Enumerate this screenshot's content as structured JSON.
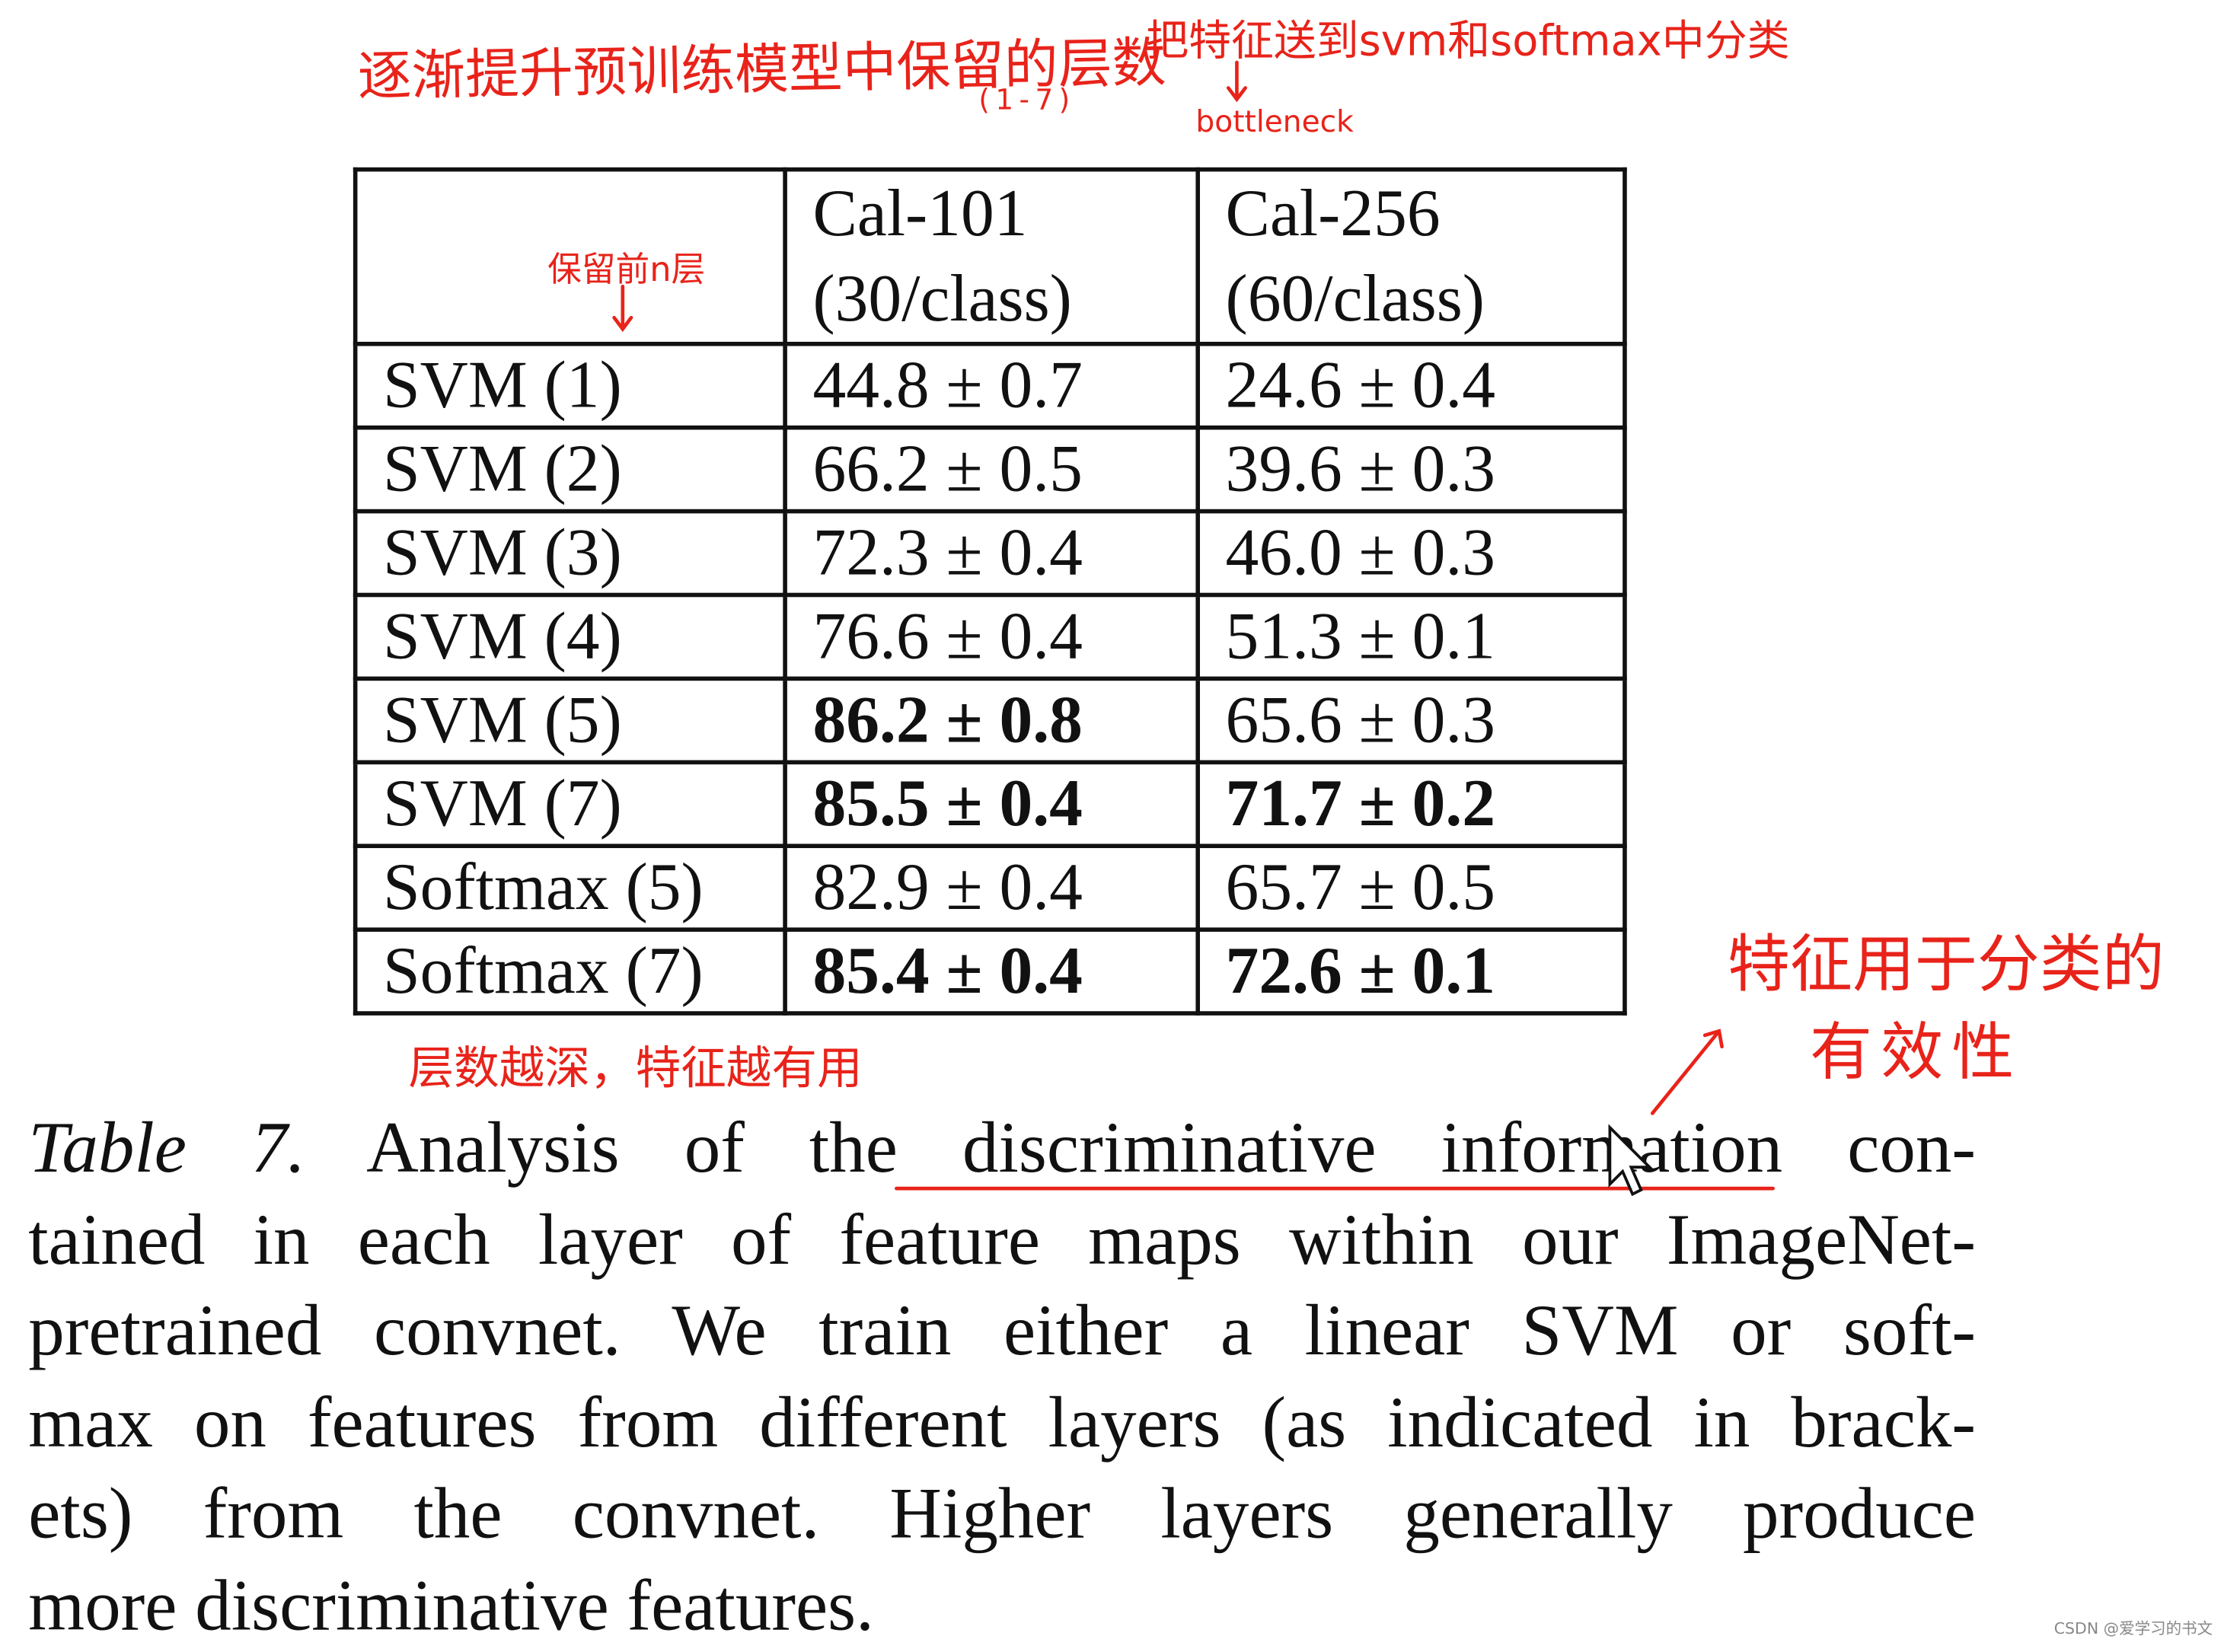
{
  "annotations": {
    "top_left": "逐渐提升预训练模型中保留的层数",
    "top_left_range": "(1-7)",
    "top_right": "把特征送到svm和softmax中分类",
    "bottleneck": "bottleneck",
    "keep_first_n": "保留前n层",
    "below_table": "层数越深，特征越有用",
    "right_line1": "特征用于分类的",
    "right_line2": "有效性",
    "color": "#e8231a"
  },
  "table": {
    "headers": [
      {
        "line1": "",
        "line2": ""
      },
      {
        "line1": "Cal-101",
        "line2": "(30/class)"
      },
      {
        "line1": "Cal-256",
        "line2": "(60/class)"
      }
    ],
    "rows": [
      {
        "method": "SVM (1)",
        "cal101": "44.8 ± 0.7",
        "cal101_bold": false,
        "cal256": "24.6 ± 0.4",
        "cal256_bold": false
      },
      {
        "method": "SVM (2)",
        "cal101": "66.2 ± 0.5",
        "cal101_bold": false,
        "cal256": "39.6 ± 0.3",
        "cal256_bold": false
      },
      {
        "method": "SVM (3)",
        "cal101": "72.3 ± 0.4",
        "cal101_bold": false,
        "cal256": "46.0 ± 0.3",
        "cal256_bold": false
      },
      {
        "method": "SVM (4)",
        "cal101": "76.6 ± 0.4",
        "cal101_bold": false,
        "cal256": "51.3 ± 0.1",
        "cal256_bold": false
      },
      {
        "method": "SVM (5)",
        "cal101": "86.2 ± 0.8",
        "cal101_bold": true,
        "cal256": "65.6 ± 0.3",
        "cal256_bold": false
      },
      {
        "method": "SVM (7)",
        "cal101": "85.5 ± 0.4",
        "cal101_bold": true,
        "cal256": "71.7 ± 0.2",
        "cal256_bold": true
      },
      {
        "method": "Softmax (5)",
        "cal101": "82.9 ± 0.4",
        "cal101_bold": false,
        "cal256": "65.7 ± 0.5",
        "cal256_bold": false
      },
      {
        "method": "Softmax (7)",
        "cal101": "85.4 ± 0.4",
        "cal101_bold": true,
        "cal256": "72.6 ± 0.1",
        "cal256_bold": true
      }
    ]
  },
  "caption": {
    "label": "Table 7.",
    "lines": [
      "Analysis of the discriminative information con-",
      "tained in each layer of feature maps within our ImageNet-",
      "pretrained convnet. We train either a linear SVM or soft-",
      "max on features from different layers (as indicated in brack-",
      "ets) from the convnet. Higher layers generally produce",
      "more discriminative features."
    ]
  },
  "watermark": "CSDN @爱学习的书文"
}
